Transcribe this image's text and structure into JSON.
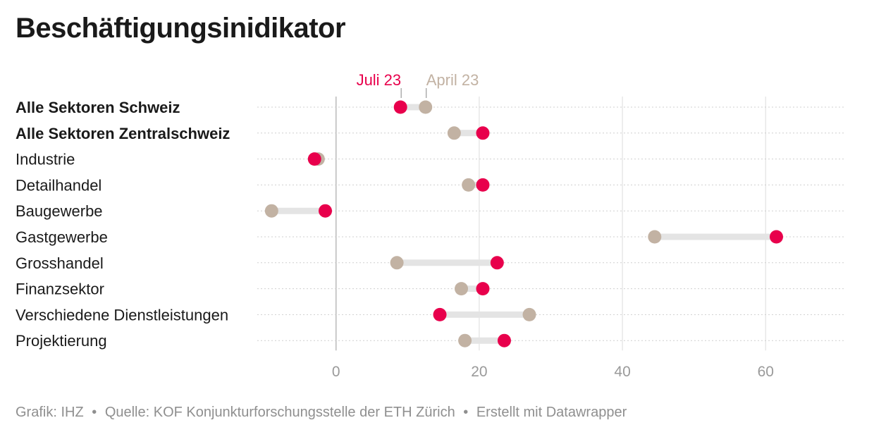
{
  "title": "Beschäftigungsinidikator",
  "footer": {
    "credit": "Grafik: IHZ",
    "separator": "•",
    "source": "Quelle: KOF Konjunkturforschungsstelle der ETH Zürich",
    "tool": "Erstellt mit Datawrapper"
  },
  "colors": {
    "july": "#e8004c",
    "april": "#c2b2a3",
    "connector": "#e4e4e4",
    "axis_text": "#9a9a9a"
  },
  "chart_data": {
    "type": "dot-range",
    "xlim": [
      -11,
      71
    ],
    "x_ticks": [
      0,
      20,
      40,
      60
    ],
    "grid": true,
    "series": [
      {
        "name": "Juli 23",
        "values": [
          9,
          20.5,
          -3,
          20.5,
          -1.5,
          61.5,
          22.5,
          20.5,
          14.5,
          23.5
        ]
      },
      {
        "name": "April 23",
        "values": [
          12.5,
          16.5,
          -2.5,
          18.5,
          -9,
          44.5,
          8.5,
          17.5,
          27,
          18
        ]
      }
    ],
    "categories": [
      "Alle Sektoren Schweiz",
      "Alle Sektoren Zentralschweiz",
      "Industrie",
      "Detailhandel",
      "Baugewerbe",
      "Gastgewerbe",
      "Grosshandel",
      "Finanzsektor",
      "Verschiedene Dienstleistungen",
      "Projektierung"
    ],
    "bold_categories": [
      0,
      1
    ],
    "legend_row": 0
  }
}
